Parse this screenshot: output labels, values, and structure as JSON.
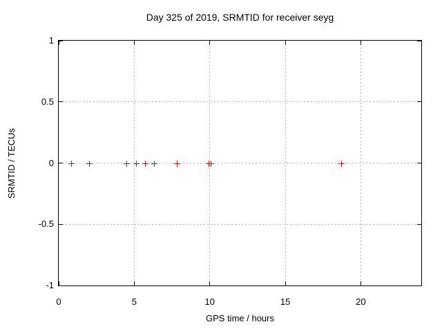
{
  "chart_data": {
    "type": "scatter",
    "title": "Day 325 of 2019, SRMTID for receiver seyg",
    "xlabel": "GPS time / hours",
    "ylabel": "SRMTID / TECUs",
    "xlim": [
      0,
      24
    ],
    "ylim": [
      -1,
      1
    ],
    "xticks": [
      0,
      5,
      10,
      15,
      20
    ],
    "yticks": [
      -1,
      -0.5,
      0,
      0.5,
      1
    ],
    "grid": true,
    "legend": "none",
    "marker": "plus",
    "colors": {
      "marker": "#ff0000",
      "grid": "#b0b0b0",
      "frame": "#000000",
      "background": "#ffffff"
    },
    "series": [
      {
        "name": "SRMTID",
        "points": [
          [
            0.8,
            0
          ],
          [
            2.0,
            0
          ],
          [
            4.5,
            0
          ],
          [
            5.1,
            0
          ],
          [
            5.7,
            0
          ],
          [
            6.3,
            0
          ],
          [
            7.8,
            0
          ],
          [
            9.9,
            0
          ],
          [
            10.05,
            0
          ],
          [
            18.7,
            0
          ]
        ]
      }
    ]
  }
}
